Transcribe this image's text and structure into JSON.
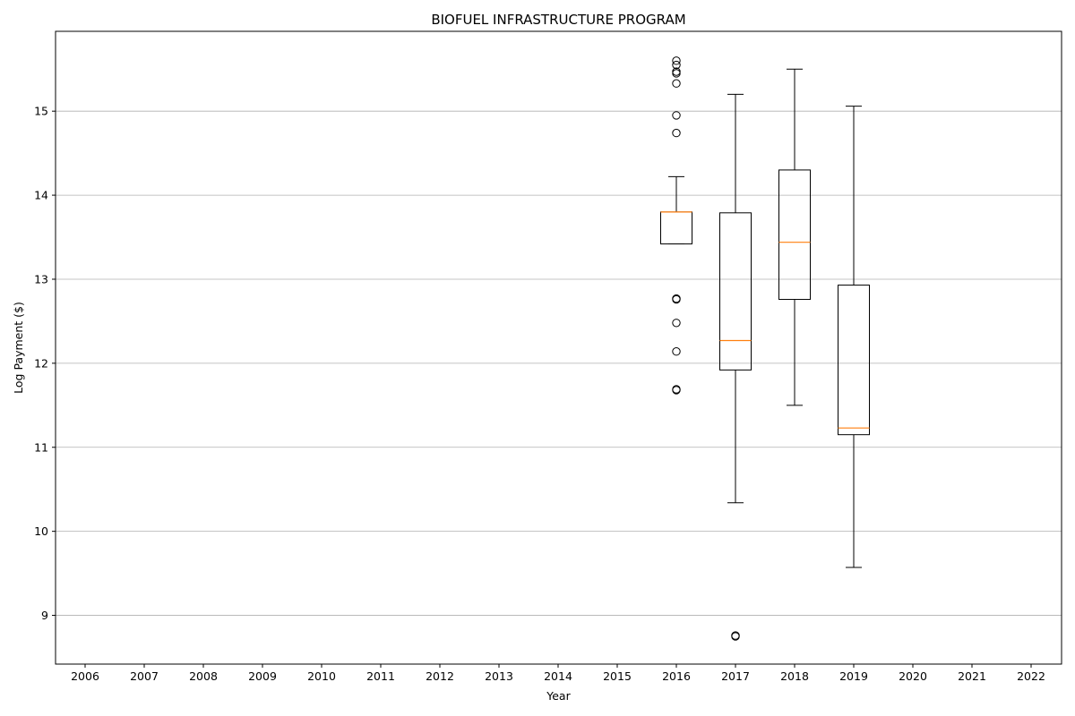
{
  "chart_data": {
    "type": "boxplot",
    "title": "BIOFUEL INFRASTRUCTURE PROGRAM",
    "xlabel": "Year",
    "ylabel": "Log Payment ($)",
    "categories": [
      "2006",
      "2007",
      "2008",
      "2009",
      "2010",
      "2011",
      "2012",
      "2013",
      "2014",
      "2015",
      "2016",
      "2017",
      "2018",
      "2019",
      "2020",
      "2021",
      "2022"
    ],
    "ylim": [
      8.42,
      15.95
    ],
    "yticks": [
      9,
      10,
      11,
      12,
      13,
      14,
      15
    ],
    "grid": "horizontal",
    "colors": {
      "box": "#000000",
      "median": "#ff7f0e",
      "grid": "#b0b0b0"
    },
    "boxes": [
      {
        "year": "2016",
        "whisker_low": 13.42,
        "q1": 13.42,
        "median": 13.8,
        "q3": 13.8,
        "whisker_high": 14.22,
        "outliers": [
          15.6,
          15.55,
          15.47,
          15.45,
          15.33,
          14.95,
          14.74,
          12.77,
          12.76,
          12.48,
          12.14,
          11.69,
          11.68
        ]
      },
      {
        "year": "2017",
        "whisker_low": 10.34,
        "q1": 11.92,
        "median": 12.27,
        "q3": 13.79,
        "whisker_high": 15.2,
        "outliers": [
          8.76,
          8.75
        ]
      },
      {
        "year": "2018",
        "whisker_low": 11.5,
        "q1": 12.76,
        "median": 13.44,
        "q3": 14.3,
        "whisker_high": 15.5,
        "outliers": []
      },
      {
        "year": "2019",
        "whisker_low": 9.57,
        "q1": 11.15,
        "median": 11.23,
        "q3": 12.93,
        "whisker_high": 15.06,
        "outliers": []
      }
    ]
  }
}
